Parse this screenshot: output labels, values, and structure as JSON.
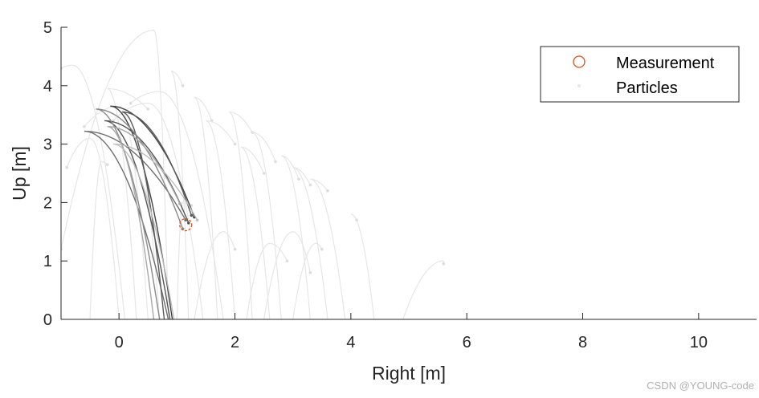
{
  "chart_data": {
    "type": "line",
    "xlabel": "Right [m]",
    "ylabel": "Up [m]",
    "xlim": [
      -1,
      11
    ],
    "ylim": [
      0,
      5
    ],
    "xticks": [
      0,
      2,
      4,
      6,
      8,
      10
    ],
    "yticks": [
      0,
      1,
      2,
      3,
      4,
      5
    ],
    "grid": false,
    "legend": {
      "placement": "top-right",
      "entries": [
        {
          "label": "Measurement",
          "marker": "circle",
          "color": "#d95319"
        },
        {
          "label": "Particles",
          "marker": "dot",
          "color": "#e6e6e6"
        }
      ]
    },
    "measurement": {
      "x": 1.15,
      "y": 1.62,
      "color": "#d95319"
    },
    "particle_color": "#e6e6e6",
    "particle_trajectories": [
      {
        "start": [
          0.85,
          0.0
        ],
        "apex": [
          0.6,
          4.95
        ],
        "end": [
          -1.0,
          1.2
        ]
      },
      {
        "start": [
          1.2,
          0.0
        ],
        "apex": [
          0.9,
          4.25
        ],
        "end": [
          1.1,
          4.0
        ]
      },
      {
        "start": [
          1.7,
          0.0
        ],
        "apex": [
          1.3,
          3.8
        ],
        "end": [
          1.6,
          3.4
        ]
      },
      {
        "start": [
          0.3,
          0.0
        ],
        "apex": [
          -0.2,
          3.95
        ],
        "end": [
          0.5,
          3.6
        ]
      },
      {
        "start": [
          2.3,
          0.0
        ],
        "apex": [
          1.9,
          3.55
        ],
        "end": [
          2.3,
          3.2
        ]
      },
      {
        "start": [
          2.8,
          0.0
        ],
        "apex": [
          2.3,
          3.2
        ],
        "end": [
          2.7,
          2.7
        ]
      },
      {
        "start": [
          3.3,
          0.0
        ],
        "apex": [
          2.8,
          2.8
        ],
        "end": [
          3.1,
          2.4
        ]
      },
      {
        "start": [
          3.9,
          0.0
        ],
        "apex": [
          3.3,
          2.4
        ],
        "end": [
          3.6,
          2.2
        ]
      },
      {
        "start": [
          4.4,
          0.0
        ],
        "apex": [
          4.0,
          1.8
        ],
        "end": [
          4.1,
          1.7
        ]
      },
      {
        "start": [
          4.9,
          0.0
        ],
        "apex": [
          5.6,
          1.0
        ],
        "end": [
          5.6,
          0.95
        ]
      },
      {
        "start": [
          0.1,
          0.0
        ],
        "apex": [
          -0.8,
          4.35
        ],
        "end": [
          -1.0,
          4.3
        ]
      },
      {
        "start": [
          1.45,
          0.0
        ],
        "apex": [
          0.5,
          3.7
        ],
        "end": [
          -0.1,
          3.4
        ]
      },
      {
        "start": [
          2.0,
          0.0
        ],
        "apex": [
          1.5,
          3.4
        ],
        "end": [
          2.0,
          3.0
        ]
      },
      {
        "start": [
          0.5,
          0.0
        ],
        "apex": [
          0.0,
          3.65
        ],
        "end": [
          -0.6,
          3.3
        ]
      },
      {
        "start": [
          2.6,
          0.0
        ],
        "apex": [
          2.1,
          2.95
        ],
        "end": [
          2.5,
          2.5
        ]
      },
      {
        "start": [
          3.6,
          0.0
        ],
        "apex": [
          3.0,
          2.6
        ],
        "end": [
          3.3,
          2.3
        ]
      },
      {
        "start": [
          1.0,
          0.0
        ],
        "apex": [
          1.1,
          2.0
        ],
        "end": [
          1.25,
          1.95
        ]
      },
      {
        "start": [
          -0.5,
          0.0
        ],
        "apex": [
          -0.3,
          2.7
        ],
        "end": [
          -0.2,
          2.65
        ]
      },
      {
        "start": [
          1.8,
          0.0
        ],
        "apex": [
          0.7,
          3.9
        ],
        "end": [
          0.2,
          3.7
        ]
      },
      {
        "start": [
          3.0,
          0.0
        ],
        "apex": [
          3.4,
          1.3
        ],
        "end": [
          3.5,
          1.2
        ]
      },
      {
        "start": [
          2.2,
          0.0
        ],
        "apex": [
          2.6,
          1.3
        ],
        "end": [
          2.9,
          1.0
        ]
      },
      {
        "start": [
          0.0,
          0.0
        ],
        "apex": [
          -0.5,
          3.1
        ],
        "end": [
          -0.9,
          2.6
        ]
      },
      {
        "start": [
          1.3,
          0.0
        ],
        "apex": [
          1.8,
          1.5
        ],
        "end": [
          2.0,
          1.2
        ]
      },
      {
        "start": [
          2.5,
          0.0
        ],
        "apex": [
          3.0,
          1.5
        ],
        "end": [
          3.3,
          0.8
        ]
      },
      {
        "start": [
          0.7,
          0.0
        ],
        "apex": [
          0.2,
          3.2
        ],
        "end": [
          0.4,
          3.0
        ]
      }
    ],
    "highlight_trajectories": [
      {
        "start": [
          0.92,
          0.0
        ],
        "apex": [
          -0.15,
          3.65
        ],
        "end": [
          1.3,
          1.75
        ],
        "color": "#444444"
      },
      {
        "start": [
          0.88,
          0.0
        ],
        "apex": [
          -0.25,
          3.4
        ],
        "end": [
          1.2,
          1.65
        ],
        "color": "#555555"
      },
      {
        "start": [
          0.85,
          0.0
        ],
        "apex": [
          -0.6,
          3.22
        ],
        "end": [
          1.15,
          1.7
        ],
        "color": "#6e6e6e"
      },
      {
        "start": [
          0.78,
          0.0
        ],
        "apex": [
          0.05,
          3.55
        ],
        "end": [
          1.25,
          1.78
        ],
        "color": "#5a5a5a"
      },
      {
        "start": [
          0.7,
          0.0
        ],
        "apex": [
          -0.4,
          3.6
        ],
        "end": [
          1.1,
          1.55
        ],
        "color": "#8a8a8a"
      },
      {
        "start": [
          0.6,
          0.0
        ],
        "apex": [
          -0.2,
          3.3
        ],
        "end": [
          1.05,
          1.98
        ],
        "color": "#a8a8a8"
      },
      {
        "start": [
          0.95,
          0.0
        ],
        "apex": [
          -0.1,
          3.0
        ],
        "end": [
          1.35,
          1.7
        ],
        "color": "#bdbdbd"
      }
    ]
  },
  "watermark": "CSDN @YOUNG-code"
}
